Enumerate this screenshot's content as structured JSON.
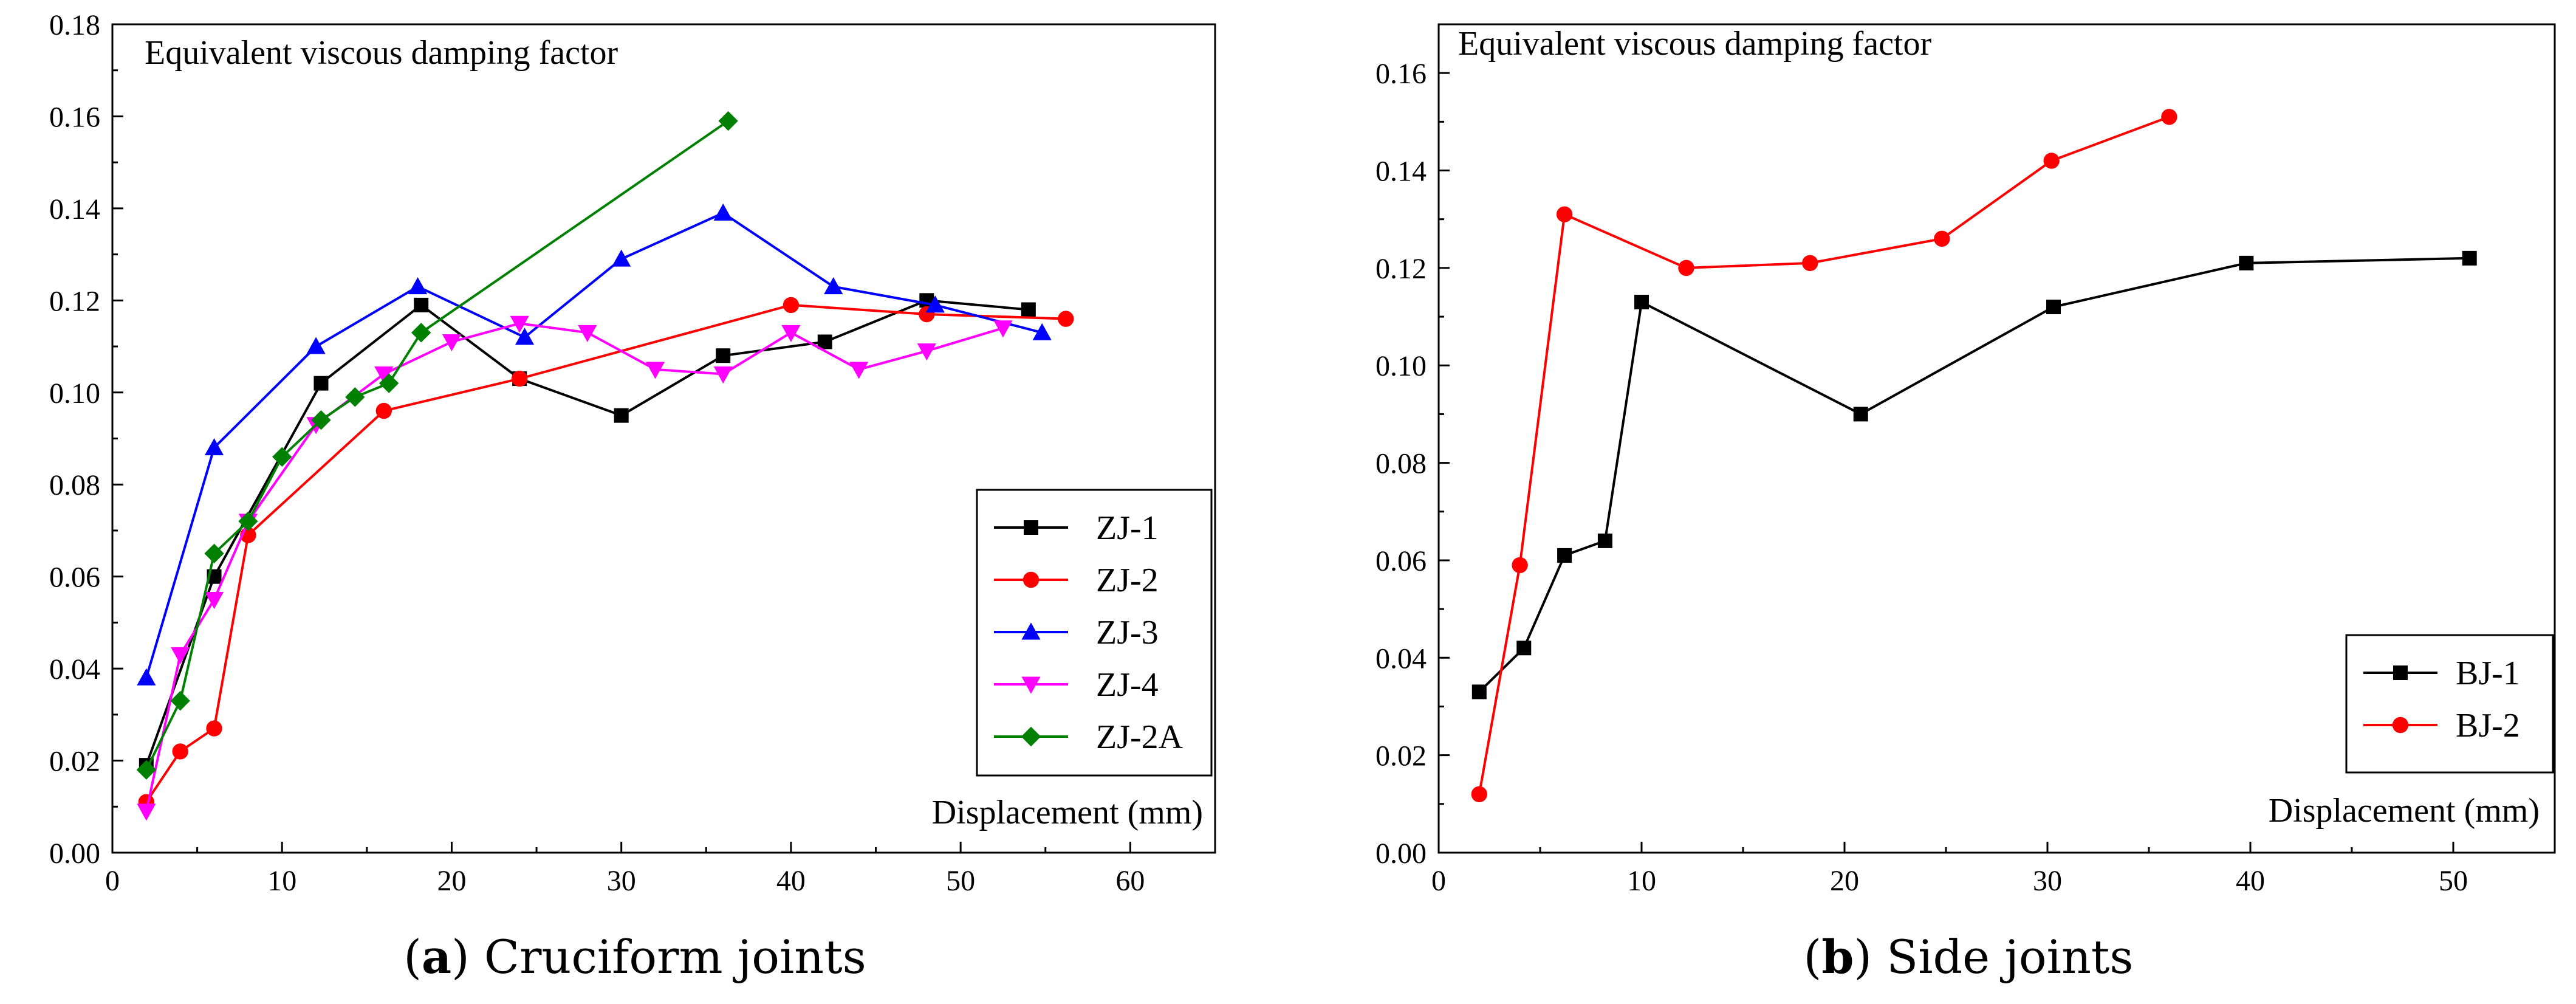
{
  "chart_data": [
    {
      "type": "line",
      "title": "Equivalent viscous damping factor",
      "xlabel": "Displacement (mm)",
      "ylabel": "",
      "xlim": [
        0,
        65
      ],
      "ylim": [
        0,
        0.18
      ],
      "xticks": [
        "0",
        "10",
        "20",
        "30",
        "40",
        "50",
        "60"
      ],
      "yticks": [
        "0.00",
        "0.02",
        "0.04",
        "0.06",
        "0.08",
        "0.10",
        "0.12",
        "0.14",
        "0.16",
        "0.18"
      ],
      "legend_position": "bottom-right",
      "caption_letter": "a",
      "caption_text": "Cruciform joints",
      "series": [
        {
          "name": "ZJ-1",
          "color": "#000000",
          "marker": "square",
          "x": [
            2,
            6,
            12.3,
            18.2,
            24,
            30,
            36,
            42,
            48,
            54
          ],
          "y": [
            0.019,
            0.06,
            0.102,
            0.119,
            0.103,
            0.095,
            0.108,
            0.111,
            0.12,
            0.118
          ]
        },
        {
          "name": "ZJ-2",
          "color": "#ff0000",
          "marker": "circle",
          "x": [
            2,
            4,
            6,
            8,
            16,
            24,
            40,
            48,
            56.2
          ],
          "y": [
            0.011,
            0.022,
            0.027,
            0.069,
            0.096,
            0.103,
            0.119,
            0.117,
            0.116
          ]
        },
        {
          "name": "ZJ-3",
          "color": "#0000ff",
          "marker": "triangle-up",
          "x": [
            2,
            6,
            12,
            18,
            24.3,
            30,
            36,
            42.5,
            48.5,
            54.8
          ],
          "y": [
            0.038,
            0.088,
            0.11,
            0.123,
            0.112,
            0.129,
            0.139,
            0.123,
            0.119,
            0.113
          ]
        },
        {
          "name": "ZJ-4",
          "color": "#ff00ff",
          "marker": "triangle-down",
          "x": [
            2,
            4,
            6,
            8,
            12,
            16,
            20,
            24,
            28,
            32,
            36,
            40,
            44,
            48,
            52.5
          ],
          "y": [
            0.009,
            0.043,
            0.055,
            0.072,
            0.093,
            0.104,
            0.111,
            0.115,
            0.113,
            0.105,
            0.104,
            0.113,
            0.105,
            0.109,
            0.114
          ]
        },
        {
          "name": "ZJ-2A",
          "color": "#008000",
          "marker": "diamond",
          "x": [
            2,
            4,
            6,
            8,
            10,
            12.3,
            14.3,
            16.3,
            18.2,
            36.3
          ],
          "y": [
            0.018,
            0.033,
            0.065,
            0.072,
            0.086,
            0.094,
            0.099,
            0.102,
            0.113,
            0.159
          ]
        }
      ]
    },
    {
      "type": "line",
      "title": "Equivalent viscous damping factor",
      "xlabel": "Displacement (mm)",
      "ylabel": "",
      "xlim": [
        0,
        55
      ],
      "ylim": [
        0,
        0.17
      ],
      "xticks": [
        "0",
        "10",
        "20",
        "30",
        "40",
        "50"
      ],
      "yticks": [
        "0.00",
        "0.02",
        "0.04",
        "0.06",
        "0.08",
        "0.10",
        "0.12",
        "0.14",
        "0.16"
      ],
      "legend_position": "bottom-right",
      "caption_letter": "b",
      "caption_text": "Side joints",
      "series": [
        {
          "name": "BJ-1",
          "color": "#000000",
          "marker": "square",
          "x": [
            2,
            4.2,
            6.2,
            8.2,
            10,
            20.8,
            30.3,
            39.8,
            50.8
          ],
          "y": [
            0.033,
            0.042,
            0.061,
            0.064,
            0.113,
            0.09,
            0.112,
            0.121,
            0.122
          ]
        },
        {
          "name": "BJ-2",
          "color": "#ff0000",
          "marker": "circle",
          "x": [
            2,
            4,
            6.2,
            12.2,
            18.3,
            24.8,
            30.2,
            36
          ],
          "y": [
            0.012,
            0.059,
            0.131,
            0.12,
            0.121,
            0.126,
            0.142,
            0.151
          ]
        }
      ]
    }
  ]
}
